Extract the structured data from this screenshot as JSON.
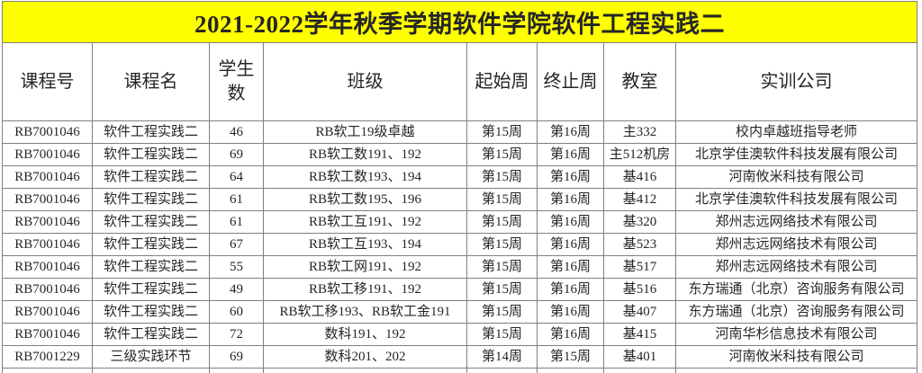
{
  "title": "2021-2022学年秋季学期软件学院软件工程实践二",
  "colors": {
    "title_background": "#ffff00",
    "grid_line": "#808080",
    "text": "#262626"
  },
  "table": {
    "column_names": [
      "course_no",
      "course_name",
      "student_count",
      "class",
      "start_week",
      "end_week",
      "room",
      "company"
    ],
    "headers": [
      "课程号",
      "课程名",
      "学生数",
      "班级",
      "起始周",
      "终止周",
      "教室",
      "实训公司"
    ],
    "rows": [
      [
        "RB7001046",
        "软件工程实践二",
        "46",
        "RB软工19级卓越",
        "第15周",
        "第16周",
        "主332",
        "校内卓越班指导老师"
      ],
      [
        "RB7001046",
        "软件工程实践二",
        "69",
        "RB软工数191、192",
        "第15周",
        "第16周",
        "主512机房",
        "北京学佳澳软件科技发展有限公司"
      ],
      [
        "RB7001046",
        "软件工程实践二",
        "64",
        "RB软工数193、194",
        "第15周",
        "第16周",
        "基416",
        "河南攸米科技有限公司"
      ],
      [
        "RB7001046",
        "软件工程实践二",
        "61",
        "RB软工数195、196",
        "第15周",
        "第16周",
        "基412",
        "北京学佳澳软件科技发展有限公司"
      ],
      [
        "RB7001046",
        "软件工程实践二",
        "61",
        "RB软工互191、192",
        "第15周",
        "第16周",
        "基320",
        "郑州志远网络技术有限公司"
      ],
      [
        "RB7001046",
        "软件工程实践二",
        "67",
        "RB软工互193、194",
        "第15周",
        "第16周",
        "基523",
        "郑州志远网络技术有限公司"
      ],
      [
        "RB7001046",
        "软件工程实践二",
        "55",
        "RB软工网191、192",
        "第15周",
        "第16周",
        "基517",
        "郑州志远网络技术有限公司"
      ],
      [
        "RB7001046",
        "软件工程实践二",
        "49",
        "RB软工移191、192",
        "第15周",
        "第16周",
        "基516",
        "东方瑞通（北京）咨询服务有限公司"
      ],
      [
        "RB7001046",
        "软件工程实践二",
        "60",
        "RB软工移193、RB软工金191",
        "第15周",
        "第16周",
        "基407",
        "东方瑞通（北京）咨询服务有限公司"
      ],
      [
        "RB7001046",
        "软件工程实践二",
        "72",
        "数科191、192",
        "第15周",
        "第16周",
        "基415",
        "河南华杉信息技术有限公司"
      ],
      [
        "RB7001229",
        "三级实践环节",
        "69",
        "数科201、202",
        "第14周",
        "第15周",
        "基401",
        "河南攸米科技有限公司"
      ]
    ]
  }
}
